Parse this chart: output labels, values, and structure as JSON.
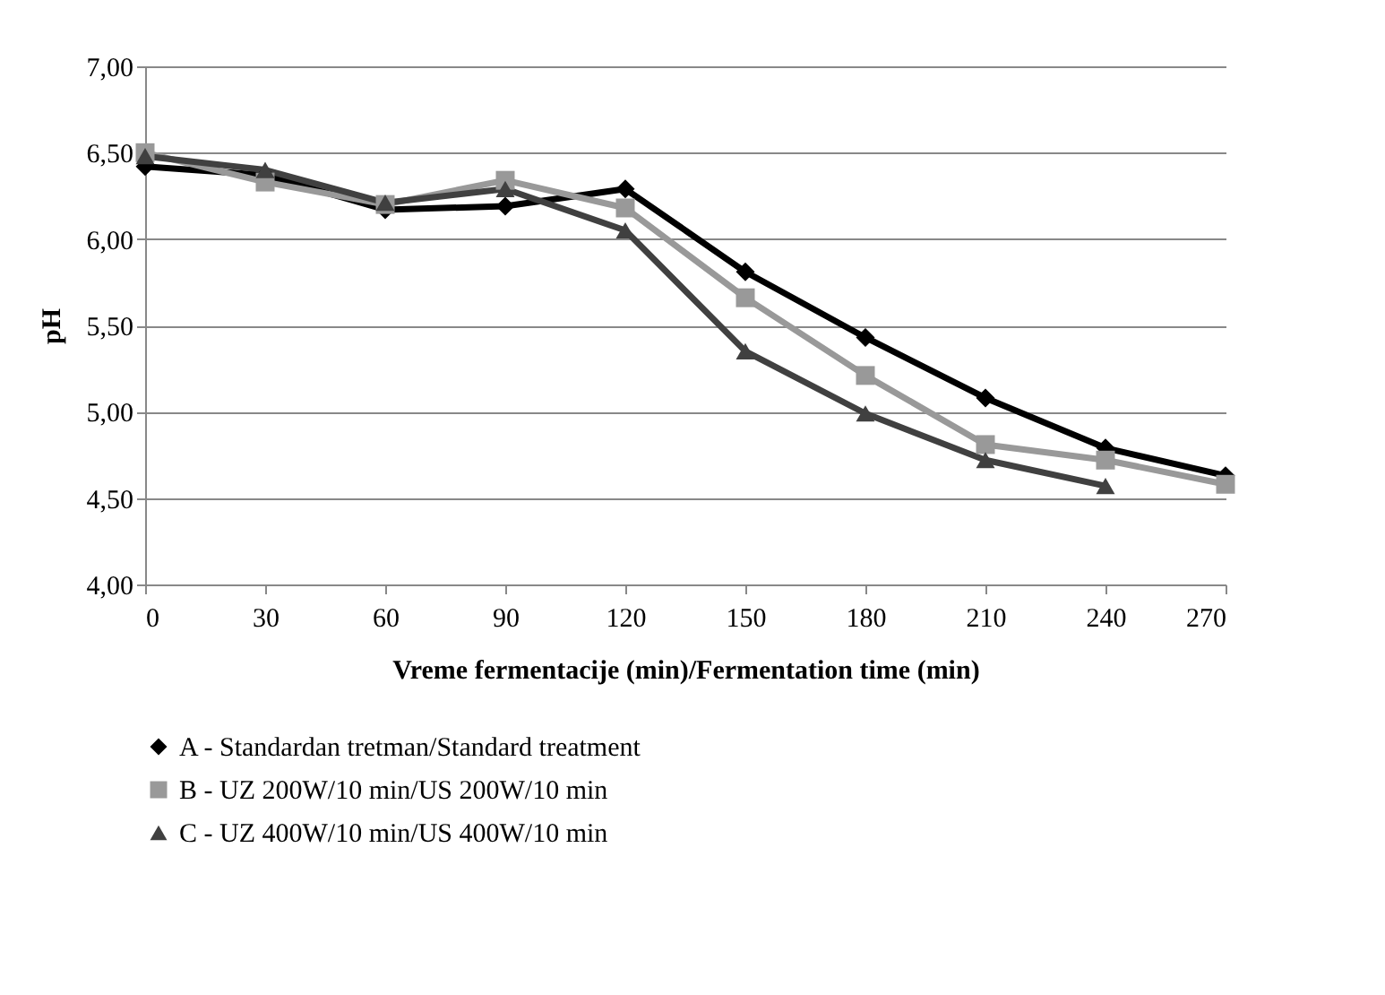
{
  "chart_data": {
    "type": "line",
    "xlabel": "Vreme fermentacije (min)/Fermentation time (min)",
    "ylabel": "pH",
    "x": [
      0,
      30,
      60,
      90,
      120,
      150,
      180,
      210,
      240,
      270
    ],
    "series": [
      {
        "name": "A - Standardan tretman/Standard treatment",
        "color": "#000000",
        "marker": "diamond",
        "values": [
          6.42,
          6.37,
          6.17,
          6.19,
          6.29,
          5.81,
          5.43,
          5.08,
          4.79,
          4.63
        ]
      },
      {
        "name": "B - UZ 200W/10 min/US 200W/10 min",
        "color": "#999999",
        "marker": "square",
        "values": [
          6.5,
          6.33,
          6.2,
          6.34,
          6.18,
          5.66,
          5.21,
          4.81,
          4.72,
          4.58
        ]
      },
      {
        "name": "C - UZ 400W/10 min/US 400W/10 min",
        "color": "#404040",
        "marker": "triangle",
        "values": [
          6.48,
          6.4,
          6.21,
          6.29,
          6.05,
          5.35,
          4.99,
          4.72,
          4.57,
          null
        ]
      }
    ],
    "xlim": [
      0,
      270
    ],
    "xticks": [
      0,
      30,
      60,
      90,
      120,
      150,
      180,
      210,
      240,
      270
    ],
    "ylim": [
      4,
      7
    ],
    "yticks": [
      {
        "value": 4,
        "label": "4,00"
      },
      {
        "value": 4.5,
        "label": "4,50"
      },
      {
        "value": 5,
        "label": "5,00"
      },
      {
        "value": 5.5,
        "label": "5,50"
      },
      {
        "value": 6,
        "label": "6,00"
      },
      {
        "value": 6.5,
        "label": "6,50"
      },
      {
        "value": 7,
        "label": "7,00"
      }
    ],
    "grid": "y",
    "legend": "bottom",
    "line_style": "solid"
  }
}
